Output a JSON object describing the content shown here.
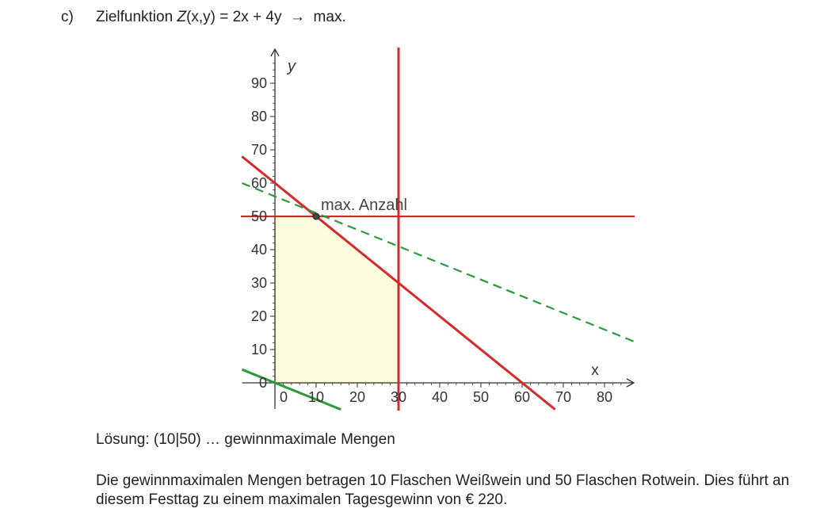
{
  "task": {
    "label": "c)",
    "objective_prefix": "Zielfunktion ",
    "objective_func": "Z",
    "objective_args": "(x,y)",
    "objective_rest": " = 2x + 4y  →  max."
  },
  "chart_data": {
    "type": "line",
    "xlabel": "x",
    "ylabel": "y",
    "xlim": [
      -8,
      88
    ],
    "ylim": [
      -8,
      100
    ],
    "xticks": [
      0,
      10,
      20,
      30,
      40,
      50,
      60,
      70,
      80
    ],
    "yticks": [
      0,
      10,
      20,
      30,
      40,
      50,
      60,
      70,
      80,
      90
    ],
    "grid": false,
    "feasible_region": {
      "color": "#fffde0",
      "edge_color": "#f2e76a",
      "vertices": [
        [
          0,
          0
        ],
        [
          0,
          50
        ],
        [
          10,
          50
        ],
        [
          30,
          30
        ],
        [
          30,
          0
        ]
      ]
    },
    "constraint_lines": [
      {
        "kind": "horizontal",
        "y": 50,
        "color": "#d42a2a"
      },
      {
        "kind": "vertical",
        "x": 30,
        "color": "#d42a2a"
      },
      {
        "kind": "line",
        "x": [
          -8,
          68
        ],
        "y": [
          68,
          -8
        ],
        "color": "#d42a2a"
      }
    ],
    "objective_lines": [
      {
        "x": [
          -8,
          88
        ],
        "y": [
          60,
          12
        ],
        "color": "#2a9a3a",
        "style": "dashed"
      },
      {
        "x": [
          -8,
          16
        ],
        "y": [
          4,
          -8
        ],
        "color": "#2a9a3a",
        "style": "solid"
      }
    ],
    "annotation": {
      "text": "max. Anzahl",
      "point": [
        10,
        50
      ]
    }
  },
  "solution": "Lösung: (10|50) … gewinnmaximale Mengen",
  "explanation": "Die gewinnmaximalen Mengen betragen 10 Flaschen Weißwein und 50 Flaschen Rotwein. Dies führt an diesem Festtag zu einem maximalen Tagesgewinn von € 220."
}
